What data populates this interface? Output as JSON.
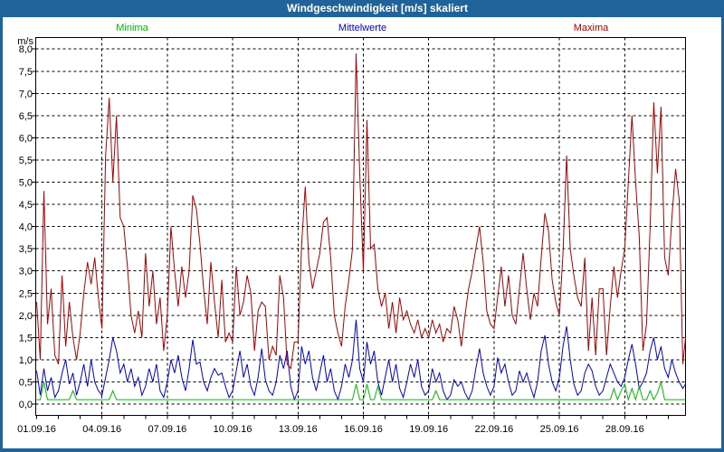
{
  "window": {
    "title": "Windgeschwindigkeit [m/s] skaliert"
  },
  "legend": [
    {
      "label": "Minima",
      "color": "#00BB00"
    },
    {
      "label": "Mittelwerte",
      "color": "#0000CC"
    },
    {
      "label": "Maxima",
      "color": "#AA0000"
    }
  ],
  "colors": {
    "titlebar_bg": "#20639B",
    "titlebar_text": "#FFFFFF",
    "page_border": "#20639B",
    "plot_border": "#000000",
    "grid": "#000000",
    "background": "#FFFFFF"
  },
  "chart_data": {
    "type": "line",
    "title": "Windgeschwindigkeit [m/s] skaliert",
    "unit_label": "m/s",
    "ylim": [
      0,
      8
    ],
    "y_tick_step": 0.5,
    "y_tick_labels": [
      "0,0",
      "0,5",
      "1,0",
      "1,5",
      "2,0",
      "2,5",
      "3,0",
      "3,5",
      "4,0",
      "4,5",
      "5,0",
      "5,5",
      "6,0",
      "6,5",
      "7,0",
      "7,5",
      "8,0"
    ],
    "x_tick_labels": [
      "01.09.16",
      "04.09.16",
      "07.09.16",
      "10.09.16",
      "13.09.16",
      "16.09.16",
      "19.09.16",
      "22.09.16",
      "25.09.16",
      "28.09.16"
    ],
    "x_label_interval_days": 3,
    "x_minor_tick_days": 1,
    "x_range_days": [
      0,
      29.83
    ],
    "x_start_date": "01.09.16",
    "sample_interval_hours": 4,
    "grid": "dashed",
    "legend_position": "top",
    "series": [
      {
        "name": "Minima",
        "color": "#00BB00",
        "values": [
          0.1,
          0.1,
          0.5,
          0.1,
          0.1,
          0.1,
          0.1,
          0.1,
          0.1,
          0.1,
          0.3,
          0.1,
          0.1,
          0.1,
          0.1,
          0.1,
          0.1,
          0.1,
          0.1,
          0.1,
          0.1,
          0.3,
          0.1,
          0.1,
          0.1,
          0.1,
          0.1,
          0.1,
          0.1,
          0.1,
          0.1,
          0.1,
          0.1,
          0.1,
          0.1,
          0.1,
          0.1,
          0.1,
          0.1,
          0.1,
          0.1,
          0.1,
          0.1,
          0.1,
          0.1,
          0.1,
          0.1,
          0.1,
          0.1,
          0.1,
          0.1,
          0.1,
          0.1,
          0.1,
          0.1,
          0.1,
          0.1,
          0.1,
          0.1,
          0.1,
          0.1,
          0.1,
          0.1,
          0.1,
          0.1,
          0.1,
          0.1,
          0.1,
          0.1,
          0.1,
          0.1,
          0.1,
          0.1,
          0.1,
          0.1,
          0.1,
          0.1,
          0.1,
          0.1,
          0.1,
          0.1,
          0.1,
          0.1,
          0.1,
          0.1,
          0.1,
          0.1,
          0.1,
          0.45,
          0.1,
          0.1,
          0.45,
          0.1,
          0.1,
          0.4,
          0.1,
          0.1,
          0.1,
          0.1,
          0.1,
          0.1,
          0.1,
          0.1,
          0.1,
          0.1,
          0.1,
          0.1,
          0.1,
          0.1,
          0.1,
          0.3,
          0.1,
          0.1,
          0.1,
          0.1,
          0.1,
          0.1,
          0.1,
          0.1,
          0.1,
          0.1,
          0.1,
          0.1,
          0.1,
          0.1,
          0.1,
          0.1,
          0.1,
          0.1,
          0.1,
          0.1,
          0.1,
          0.1,
          0.1,
          0.1,
          0.1,
          0.1,
          0.1,
          0.1,
          0.1,
          0.1,
          0.1,
          0.1,
          0.1,
          0.1,
          0.1,
          0.1,
          0.1,
          0.1,
          0.1,
          0.1,
          0.1,
          0.1,
          0.1,
          0.1,
          0.1,
          0.1,
          0.1,
          0.1,
          0.35,
          0.1,
          0.3,
          0.45,
          0.1,
          0.35,
          0.1,
          0.4,
          0.1,
          0.1,
          0.3,
          0.1,
          0.25,
          0.5,
          0.1,
          0.1,
          0.1,
          0.1,
          0.1,
          0.1,
          0.1
        ]
      },
      {
        "name": "Mittelwerte",
        "color": "#0000CC",
        "values": [
          0.75,
          0.2,
          0.8,
          0.3,
          0.6,
          0.15,
          0.3,
          0.7,
          1.0,
          0.45,
          0.7,
          0.2,
          0.5,
          0.9,
          0.4,
          1.0,
          0.5,
          0.3,
          0.2,
          0.6,
          1.0,
          1.5,
          1.2,
          0.7,
          0.9,
          0.5,
          0.8,
          0.4,
          0.6,
          0.2,
          0.4,
          0.8,
          0.5,
          0.9,
          0.3,
          0.15,
          0.5,
          1.0,
          0.7,
          1.1,
          0.6,
          0.3,
          0.8,
          1.45,
          0.9,
          0.95,
          0.5,
          0.3,
          0.6,
          0.8,
          0.65,
          0.7,
          0.4,
          0.15,
          0.3,
          0.75,
          1.2,
          0.6,
          0.9,
          0.4,
          0.2,
          0.6,
          1.25,
          0.55,
          0.3,
          0.2,
          0.5,
          1.1,
          0.8,
          1.2,
          0.4,
          0.1,
          0.3,
          1.3,
          0.9,
          1.2,
          0.6,
          0.3,
          0.7,
          1.1,
          0.5,
          0.8,
          0.3,
          0.1,
          0.4,
          0.9,
          0.6,
          1.0,
          1.9,
          0.8,
          0.5,
          1.4,
          0.9,
          1.2,
          0.5,
          0.2,
          0.6,
          1.0,
          0.5,
          0.9,
          0.35,
          0.15,
          0.5,
          0.9,
          0.6,
          1.0,
          0.4,
          0.2,
          0.3,
          0.8,
          0.5,
          0.7,
          0.3,
          0.1,
          0.2,
          0.55,
          0.4,
          0.5,
          0.25,
          0.1,
          0.3,
          0.8,
          1.25,
          0.7,
          0.4,
          0.2,
          0.4,
          1.05,
          0.7,
          0.9,
          0.5,
          0.2,
          0.3,
          0.75,
          0.5,
          0.7,
          0.4,
          0.15,
          0.5,
          1.2,
          1.55,
          0.9,
          0.5,
          0.3,
          0.6,
          1.3,
          1.75,
          1.0,
          0.45,
          0.2,
          0.3,
          0.7,
          0.9,
          0.75,
          0.4,
          0.2,
          0.3,
          0.6,
          0.9,
          0.7,
          0.5,
          0.4,
          0.6,
          1.0,
          1.35,
          0.9,
          0.35,
          0.5,
          0.7,
          1.2,
          1.5,
          1.0,
          1.3,
          0.8,
          0.6,
          1.0,
          0.7,
          0.5,
          0.35,
          0.45
        ]
      },
      {
        "name": "Maxima",
        "color": "#AA0000",
        "values": [
          2.3,
          1.0,
          4.8,
          1.8,
          2.6,
          1.1,
          0.9,
          2.9,
          1.3,
          2.3,
          1.5,
          1.0,
          1.6,
          2.5,
          3.2,
          2.7,
          3.3,
          2.4,
          1.7,
          5.6,
          6.9,
          5.0,
          6.5,
          4.2,
          4.0,
          3.1,
          2.0,
          1.6,
          2.1,
          1.5,
          3.4,
          2.2,
          3.0,
          1.8,
          2.4,
          1.2,
          2.0,
          4.0,
          3.0,
          2.2,
          3.1,
          2.4,
          3.0,
          4.7,
          4.4,
          3.6,
          2.6,
          1.8,
          3.2,
          2.3,
          1.5,
          2.8,
          1.4,
          1.6,
          1.4,
          3.1,
          2.0,
          2.3,
          2.9,
          2.5,
          1.2,
          2.1,
          2.3,
          2.2,
          1.0,
          1.3,
          1.1,
          2.9,
          2.4,
          0.9,
          0.8,
          1.4,
          1.4,
          3.6,
          4.9,
          3.2,
          2.6,
          3.0,
          3.4,
          4.1,
          4.2,
          3.3,
          2.0,
          1.6,
          1.3,
          2.2,
          2.8,
          3.5,
          7.9,
          5.2,
          3.0,
          6.4,
          3.5,
          3.6,
          2.6,
          2.2,
          2.5,
          1.7,
          2.3,
          1.6,
          2.4,
          1.9,
          2.1,
          1.8,
          1.6,
          1.9,
          1.5,
          1.7,
          1.5,
          1.9,
          1.6,
          1.8,
          1.4,
          1.7,
          1.6,
          2.2,
          1.9,
          1.3,
          2.0,
          2.6,
          3.0,
          3.5,
          4.0,
          3.2,
          2.1,
          1.8,
          1.7,
          2.4,
          3.1,
          2.2,
          2.9,
          2.0,
          1.8,
          2.6,
          3.4,
          2.6,
          1.9,
          2.5,
          2.2,
          3.3,
          4.3,
          3.9,
          2.8,
          2.3,
          2.0,
          3.4,
          5.6,
          3.5,
          2.9,
          2.4,
          2.2,
          3.3,
          1.2,
          2.4,
          1.1,
          2.6,
          2.6,
          1.1,
          2.2,
          3.1,
          2.4,
          3.0,
          3.5,
          5.0,
          6.5,
          5.0,
          3.8,
          1.2,
          1.8,
          4.0,
          6.8,
          5.2,
          6.7,
          3.3,
          2.9,
          4.2,
          5.3,
          4.6,
          0.9,
          1.5
        ]
      }
    ]
  }
}
